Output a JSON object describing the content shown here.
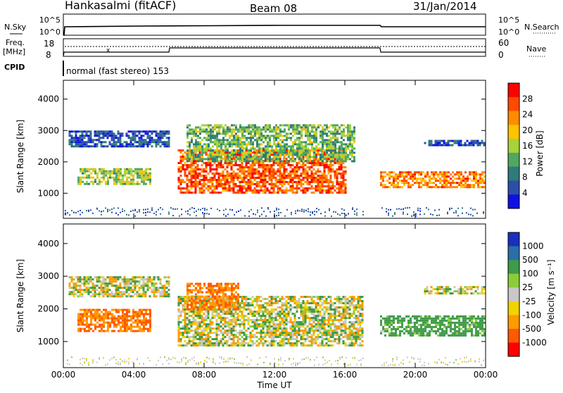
{
  "header": {
    "station": "Hankasalmi (fitACF)",
    "beam": "Beam 08",
    "date": "31/Jan/2014"
  },
  "status_panels": {
    "nsky_label": "N.Sky",
    "nsearch_label": "N.Search",
    "freq_label_line1": "Freq.",
    "freq_label_line2": "[MHz]",
    "nave_label": "Nave",
    "cpid_label": "CPID",
    "cpid_text": "normal (fast stereo) 153",
    "nsky_ticks": [
      "10^5",
      "10^0"
    ],
    "nsearch_ticks": [
      "10^5",
      "10^0"
    ],
    "freq_ticks": [
      "18",
      "8"
    ],
    "nave_ticks": [
      "60",
      "0"
    ]
  },
  "axes": {
    "x_ticks": [
      "00:00",
      "04:00",
      "08:00",
      "12:00",
      "16:00",
      "20:00",
      "00:00"
    ],
    "x_label": "Time UT",
    "y_ticks": [
      "4000",
      "3000",
      "2000",
      "1000"
    ],
    "y_label": "Slant Range [km]"
  },
  "power_colorbar": {
    "label": "Power [dB]",
    "ticks": [
      "28",
      "24",
      "20",
      "16",
      "12",
      "8",
      "4"
    ],
    "colors": [
      "#ff0000",
      "#ff4a00",
      "#ff8c00",
      "#ffc400",
      "#a8d23c",
      "#4fa860",
      "#2f7a7a",
      "#2b4fa8",
      "#1010e6"
    ]
  },
  "velocity_colorbar": {
    "label": "Velocity [m s⁻¹]",
    "ticks": [
      "1000",
      "500",
      "100",
      "25",
      "-25",
      "-100",
      "-500",
      "-1000"
    ],
    "colors": [
      "#1a2fbf",
      "#2a6ea8",
      "#3f9a4a",
      "#8ccc3a",
      "#c8c8c8",
      "#f0d400",
      "#ff9a00",
      "#ff5a00",
      "#ff0000"
    ]
  },
  "chart_data": [
    {
      "type": "heatmap",
      "title": "Power [dB]",
      "xlabel": "Time UT",
      "ylabel": "Slant Range [km]",
      "xlim": [
        "00:00",
        "24:00"
      ],
      "ylim": [
        200,
        4600
      ],
      "colorbar_range": [
        0,
        30
      ],
      "regions": [
        {
          "t_start": 0.3,
          "t_end": 6.0,
          "range_start": 2500,
          "range_end": 3000,
          "dominant_db": 6
        },
        {
          "t_start": 0.8,
          "t_end": 5.0,
          "range_start": 1300,
          "range_end": 1800,
          "dominant_db": 16
        },
        {
          "t_start": 6.5,
          "t_end": 16.0,
          "range_start": 1000,
          "range_end": 2400,
          "dominant_db": 26
        },
        {
          "t_start": 7.0,
          "t_end": 16.5,
          "range_start": 2000,
          "range_end": 3200,
          "dominant_db": 14
        },
        {
          "t_start": 18.0,
          "t_end": 23.9,
          "range_start": 1200,
          "range_end": 1700,
          "dominant_db": 24
        },
        {
          "t_start": 20.5,
          "t_end": 23.9,
          "range_start": 2500,
          "range_end": 2700,
          "dominant_db": 6
        }
      ]
    },
    {
      "type": "heatmap",
      "title": "Velocity [m s⁻¹]",
      "xlabel": "Time UT",
      "ylabel": "Slant Range [km]",
      "xlim": [
        "00:00",
        "24:00"
      ],
      "ylim": [
        200,
        4600
      ],
      "colorbar_range": [
        -1000,
        1000
      ],
      "regions": [
        {
          "t_start": 0.3,
          "t_end": 6.0,
          "range_start": 2400,
          "range_end": 3000,
          "dominant_ms": 0
        },
        {
          "t_start": 0.8,
          "t_end": 5.0,
          "range_start": 1300,
          "range_end": 2000,
          "dominant_ms": -300
        },
        {
          "t_start": 6.5,
          "t_end": 17.0,
          "range_start": 900,
          "range_end": 2400,
          "dominant_ms": 0
        },
        {
          "t_start": 7.0,
          "t_end": 10.0,
          "range_start": 2000,
          "range_end": 2800,
          "dominant_ms": -300
        },
        {
          "t_start": 18.0,
          "t_end": 23.9,
          "range_start": 1200,
          "range_end": 1800,
          "dominant_ms": 150
        },
        {
          "t_start": 20.5,
          "t_end": 23.9,
          "range_start": 2500,
          "range_end": 2700,
          "dominant_ms": 0
        }
      ]
    }
  ]
}
